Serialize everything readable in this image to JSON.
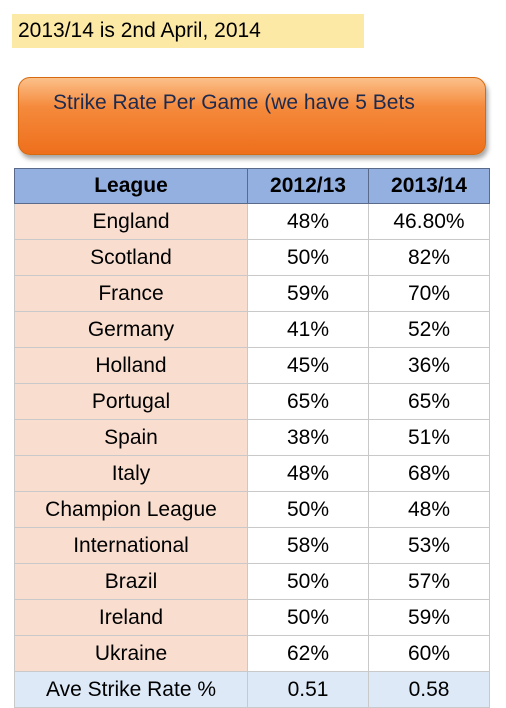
{
  "note": "2013/14 is 2nd April, 2014",
  "banner": "Strike Rate Per Game (we have 5 Bets",
  "headers": [
    "League",
    "2012/13",
    "2013/14"
  ],
  "rows": [
    [
      "England",
      "48%",
      "46.80%"
    ],
    [
      "Scotland",
      "50%",
      "82%"
    ],
    [
      "France",
      "59%",
      "70%"
    ],
    [
      "Germany",
      "41%",
      "52%"
    ],
    [
      "Holland",
      "45%",
      "36%"
    ],
    [
      "Portugal",
      "65%",
      "65%"
    ],
    [
      "Spain",
      "38%",
      "51%"
    ],
    [
      "Italy",
      "48%",
      "68%"
    ],
    [
      "Champion League",
      "50%",
      "48%"
    ],
    [
      "International",
      "58%",
      "53%"
    ],
    [
      "Brazil",
      "50%",
      "57%"
    ],
    [
      "Ireland",
      "50%",
      "59%"
    ],
    [
      "Ukraine",
      "62%",
      "60%"
    ]
  ],
  "footer": [
    "Ave Strike Rate %",
    "0.51",
    "0.58"
  ],
  "colors": {
    "note_bg": "#fde9a6",
    "banner_orange": "#ee6f1c",
    "header_blue": "#93b0e0",
    "league_bg": "#f9ded0",
    "footer_bg": "#dde9f7"
  }
}
